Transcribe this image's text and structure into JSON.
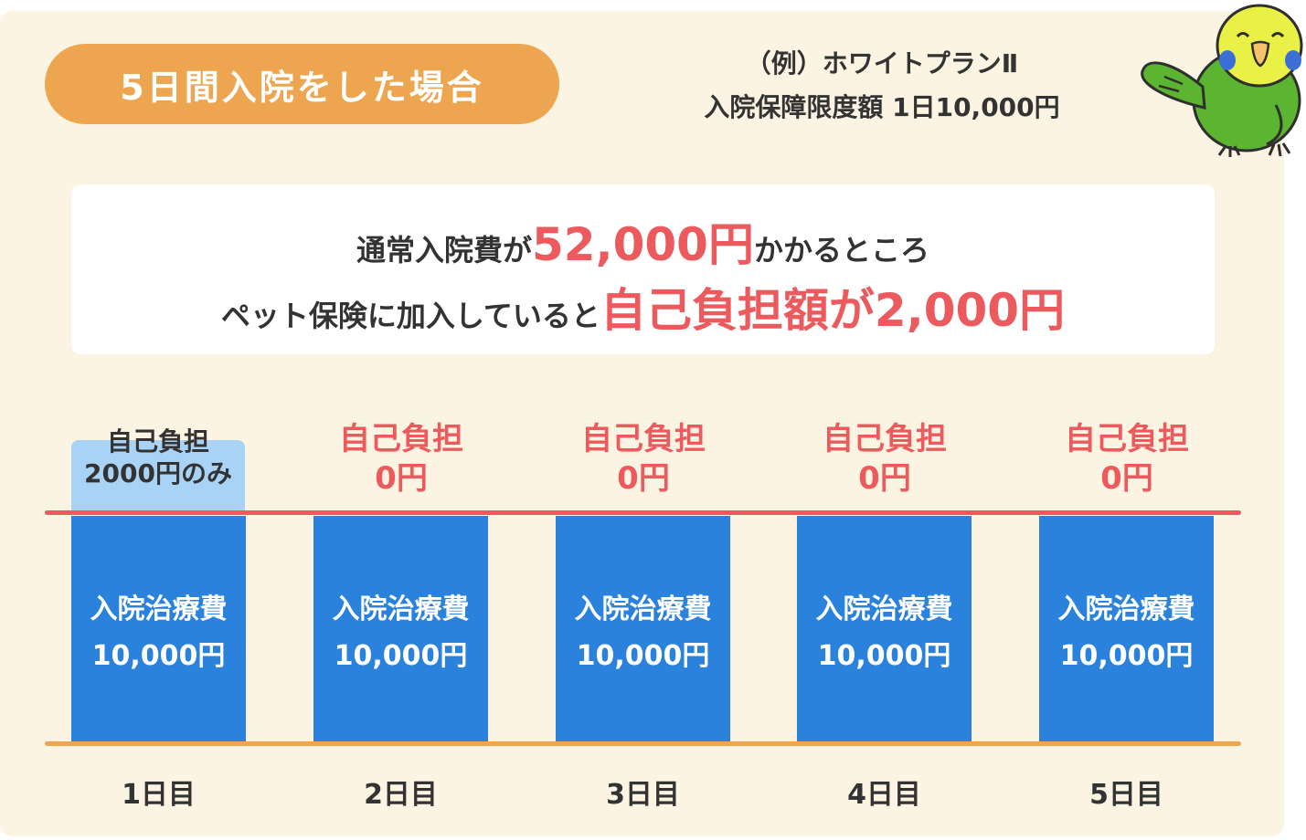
{
  "header": {
    "title": "5日間入院をした場合",
    "plan_name": "（例）ホワイトプランⅡ",
    "plan_limit": "入院保障限度額 1日10,000円"
  },
  "summary": {
    "line1_prefix": "通常入院費が",
    "line1_amount": "52,000円",
    "line1_suffix": "かかるところ",
    "line2_prefix": "ペット保険に加入していると",
    "line2_highlight": "自己負担額が2,000円"
  },
  "colors": {
    "panel_bg": "#fcf4e2",
    "title_pill": "#eda64f",
    "bar_blue": "#2a82dc",
    "copay_blue": "#a9d3f4",
    "red": "#ec5a5e",
    "orange_line": "#eda64f"
  },
  "mascot_icon": "parakeet-icon",
  "days": [
    {
      "copay_line1": "自己負担",
      "copay_line2": "2000円のみ",
      "cost_label": "入院治療費",
      "cost_value": "10,000円",
      "day": "1日目"
    },
    {
      "copay_line1": "自己負担",
      "copay_line2": "0円",
      "cost_label": "入院治療費",
      "cost_value": "10,000円",
      "day": "2日目"
    },
    {
      "copay_line1": "自己負担",
      "copay_line2": "0円",
      "cost_label": "入院治療費",
      "cost_value": "10,000円",
      "day": "3日目"
    },
    {
      "copay_line1": "自己負担",
      "copay_line2": "0円",
      "cost_label": "入院治療費",
      "cost_value": "10,000円",
      "day": "4日目"
    },
    {
      "copay_line1": "自己負担",
      "copay_line2": "0円",
      "cost_label": "入院治療費",
      "cost_value": "10,000円",
      "day": "5日目"
    }
  ]
}
